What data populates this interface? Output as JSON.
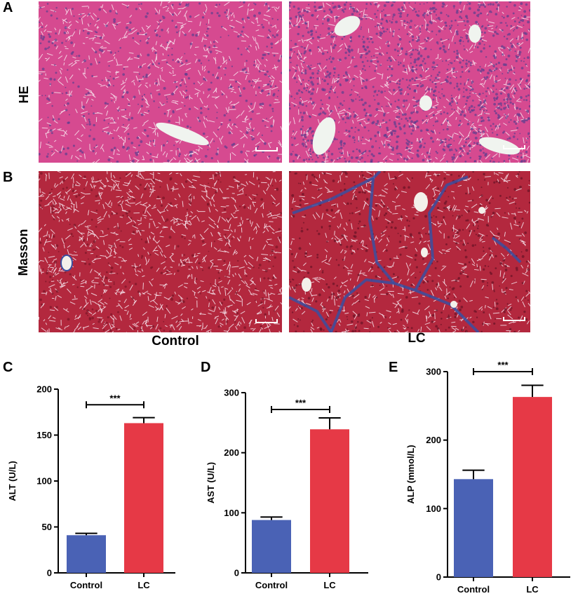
{
  "figure": {
    "panel_labels": {
      "A": "A",
      "B": "B",
      "C": "C",
      "D": "D",
      "E": "E"
    },
    "row_labels": {
      "he": "HE",
      "masson": "Masson"
    },
    "column_labels": {
      "control": "Control",
      "lc": "LC"
    },
    "colors": {
      "he_bg": "#d64a90",
      "he_dots": "#5c3f8f",
      "he_vessel": "#f0f4ef",
      "masson_bg": "#b3283e",
      "masson_fiber": "#3a4fa0",
      "masson_vessel": "#f3f0ea",
      "control_bar": "#4a62b5",
      "lc_bar": "#e63946"
    }
  },
  "chart_data": [
    {
      "type": "bar",
      "panel": "C",
      "categories": [
        "Control",
        "LC"
      ],
      "values": [
        41,
        163
      ],
      "errors": [
        2,
        6
      ],
      "ylabel": "ALT (U/L)",
      "ylim": [
        0,
        200
      ],
      "yticks": [
        0,
        50,
        100,
        150,
        200
      ],
      "significance": "***",
      "colors": [
        "#4a62b5",
        "#e63946"
      ]
    },
    {
      "type": "bar",
      "panel": "D",
      "categories": [
        "Control",
        "LC"
      ],
      "values": [
        88,
        239
      ],
      "errors": [
        5,
        19
      ],
      "ylabel": "AST (U/L)",
      "ylim": [
        0,
        300
      ],
      "yticks": [
        0,
        100,
        200,
        300
      ],
      "significance": "***",
      "colors": [
        "#4a62b5",
        "#e63946"
      ]
    },
    {
      "type": "bar",
      "panel": "E",
      "categories": [
        "Control",
        "LC"
      ],
      "values": [
        143,
        263
      ],
      "errors": [
        13,
        17
      ],
      "ylabel": "ALP (mmol/L)",
      "ylim": [
        0,
        300
      ],
      "yticks": [
        0,
        100,
        200,
        300
      ],
      "significance": "***",
      "colors": [
        "#4a62b5",
        "#e63946"
      ]
    }
  ]
}
